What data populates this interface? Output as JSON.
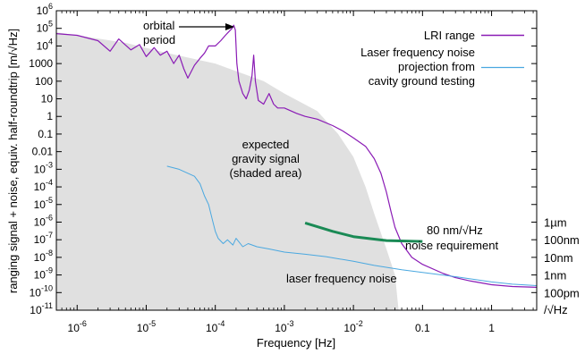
{
  "chart_data": {
    "type": "line",
    "xlabel": "Frequency [Hz]",
    "ylabel": "ranging signal + noise, equiv. half-roundtrip [m/√Hz]",
    "xscale": "log",
    "yscale": "log",
    "xlim": [
      5e-07,
      4.5
    ],
    "ylim": [
      1e-11,
      1000000.0
    ],
    "grid": false,
    "legend": {
      "position": "top-right"
    },
    "x_ticks": [
      {
        "value": 1e-06,
        "base": "10",
        "exp": "-6"
      },
      {
        "value": 1e-05,
        "base": "10",
        "exp": "-5"
      },
      {
        "value": 0.0001,
        "base": "10",
        "exp": "-4"
      },
      {
        "value": 0.001,
        "base": "10",
        "exp": "-3"
      },
      {
        "value": 0.01,
        "base": "10",
        "exp": "-2"
      },
      {
        "value": 0.1,
        "base": "0.1",
        "exp": ""
      },
      {
        "value": 1,
        "base": "1",
        "exp": ""
      }
    ],
    "y_ticks": [
      {
        "value": 1000000.0,
        "base": "10",
        "exp": "6"
      },
      {
        "value": 100000.0,
        "base": "10",
        "exp": "5"
      },
      {
        "value": 10000.0,
        "base": "10",
        "exp": "4"
      },
      {
        "value": 1000,
        "base": "1000",
        "exp": ""
      },
      {
        "value": 100,
        "base": "100",
        "exp": ""
      },
      {
        "value": 10,
        "base": "10",
        "exp": ""
      },
      {
        "value": 1,
        "base": "1",
        "exp": ""
      },
      {
        "value": 0.1,
        "base": "0.1",
        "exp": ""
      },
      {
        "value": 0.01,
        "base": "0.01",
        "exp": ""
      },
      {
        "value": 0.001,
        "base": "10",
        "exp": "-3"
      },
      {
        "value": 0.0001,
        "base": "10",
        "exp": "-4"
      },
      {
        "value": 1e-05,
        "base": "10",
        "exp": "-5"
      },
      {
        "value": 1e-06,
        "base": "10",
        "exp": "-6"
      },
      {
        "value": 1e-07,
        "base": "10",
        "exp": "-7"
      },
      {
        "value": 1e-08,
        "base": "10",
        "exp": "-8"
      },
      {
        "value": 1e-09,
        "base": "10",
        "exp": "-9"
      },
      {
        "value": 1e-10,
        "base": "10",
        "exp": "-10"
      },
      {
        "value": 1e-11,
        "base": "10",
        "exp": "-11"
      }
    ],
    "right_ticks": [
      {
        "value": 1e-06,
        "label": "1µm"
      },
      {
        "value": 1e-07,
        "label": "100nm"
      },
      {
        "value": 1e-08,
        "label": "10nm"
      },
      {
        "value": 1e-09,
        "label": "1nm"
      },
      {
        "value": 1e-10,
        "label": "100pm"
      }
    ],
    "right_unit": "/√Hz",
    "series": [
      {
        "name": "LRI range",
        "color": "#8a1bb5",
        "points": [
          [
            5e-07,
            50000.0
          ],
          [
            1e-06,
            40000.0
          ],
          [
            2e-06,
            20000.0
          ],
          [
            3e-06,
            5000
          ],
          [
            4e-06,
            25000.0
          ],
          [
            6e-06,
            6000
          ],
          [
            8e-06,
            12000.0
          ],
          [
            1e-05,
            2500
          ],
          [
            1.3e-05,
            8000
          ],
          [
            1.6e-05,
            3000
          ],
          [
            2e-05,
            5000
          ],
          [
            2.5e-05,
            1000
          ],
          [
            3e-05,
            3000
          ],
          [
            3.5e-05,
            500
          ],
          [
            4e-05,
            150
          ],
          [
            5e-05,
            800
          ],
          [
            6e-05,
            2000
          ],
          [
            7e-05,
            4000
          ],
          [
            8e-05,
            10000.0
          ],
          [
            0.0001,
            10000.0
          ],
          [
            0.00012,
            20000.0
          ],
          [
            0.00014,
            40000.0
          ],
          [
            0.00016,
            70000.0
          ],
          [
            0.000175,
            100000.0
          ],
          [
            0.000185,
            150000.0
          ],
          [
            0.000195,
            80000.0
          ],
          [
            0.000205,
            1000
          ],
          [
            0.00022,
            100
          ],
          [
            0.00025,
            20
          ],
          [
            0.00028,
            10
          ],
          [
            0.00031,
            30
          ],
          [
            0.00034,
            200
          ],
          [
            0.00036,
            3000
          ],
          [
            0.00038,
            100
          ],
          [
            0.00042,
            8
          ],
          [
            0.0005,
            5
          ],
          [
            0.0006,
            20
          ],
          [
            0.0007,
            5
          ],
          [
            0.0008,
            3
          ],
          [
            0.001,
            3
          ],
          [
            0.0015,
            1.5
          ],
          [
            0.002,
            1
          ],
          [
            0.003,
            0.7
          ],
          [
            0.005,
            0.3
          ],
          [
            0.007,
            0.15
          ],
          [
            0.01,
            0.06
          ],
          [
            0.015,
            0.02
          ],
          [
            0.02,
            0.004
          ],
          [
            0.025,
            0.0006
          ],
          [
            0.03,
            5e-05
          ],
          [
            0.035,
            4e-06
          ],
          [
            0.04,
            5e-07
          ],
          [
            0.05,
            6e-08
          ],
          [
            0.07,
            1e-08
          ],
          [
            0.1,
            4e-09
          ],
          [
            0.2,
            1.2e-09
          ],
          [
            0.3,
            7e-10
          ],
          [
            0.5,
            4.5e-10
          ],
          [
            1,
            2.8e-10
          ],
          [
            2,
            2.2e-10
          ],
          [
            4.5,
            2e-10
          ]
        ]
      },
      {
        "name": "Laser frequency noise projection from cavity ground testing",
        "color": "#4aa8e0",
        "points": [
          [
            2e-05,
            0.0015
          ],
          [
            3e-05,
            0.001
          ],
          [
            5e-05,
            0.0004
          ],
          [
            6e-05,
            0.00015
          ],
          [
            7e-05,
            3e-05
          ],
          [
            8e-05,
            1e-05
          ],
          [
            9e-05,
            1.5e-06
          ],
          [
            0.0001,
            3e-07
          ],
          [
            0.00011,
            1.2e-07
          ],
          [
            0.00013,
            6e-08
          ],
          [
            0.00015,
            1e-07
          ],
          [
            0.00018,
            5e-08
          ],
          [
            0.0002,
            1.2e-07
          ],
          [
            0.00025,
            4e-08
          ],
          [
            0.0003,
            6e-08
          ],
          [
            0.0004,
            4e-08
          ],
          [
            0.0006,
            3e-08
          ],
          [
            0.001,
            2e-08
          ],
          [
            0.002,
            1.5e-08
          ],
          [
            0.004,
            1.1e-08
          ],
          [
            0.01,
            6e-09
          ],
          [
            0.02,
            3.5e-09
          ],
          [
            0.05,
            2e-09
          ],
          [
            0.1,
            1.4e-09
          ],
          [
            0.3,
            8e-10
          ],
          [
            1,
            4e-10
          ],
          [
            2,
            3e-10
          ],
          [
            4.5,
            2.5e-10
          ]
        ]
      },
      {
        "name": "80 nm/√Hz noise requirement",
        "color": "#1a8a55",
        "points": [
          [
            0.002,
            9e-07
          ],
          [
            0.005,
            3e-07
          ],
          [
            0.01,
            1.5e-07
          ],
          [
            0.03,
            9e-08
          ],
          [
            0.1,
            8e-08
          ]
        ]
      }
    ],
    "shaded_area": {
      "color": "#e0e0e0",
      "points": [
        [
          5e-07,
          60000.0
        ],
        [
          1e-06,
          40000.0
        ],
        [
          5e-06,
          15000.0
        ],
        [
          2e-05,
          4000
        ],
        [
          0.0001,
          1000
        ],
        [
          0.0005,
          100
        ],
        [
          0.001,
          20
        ],
        [
          0.003,
          2
        ],
        [
          0.006,
          0.1
        ],
        [
          0.01,
          0.005
        ],
        [
          0.015,
          0.0001
        ],
        [
          0.02,
          3e-06
        ],
        [
          0.03,
          3e-08
        ],
        [
          0.04,
          1e-09
        ],
        [
          0.045,
          1e-11
        ]
      ]
    },
    "annotations": {
      "orbital_period": [
        "orbital",
        "period"
      ],
      "gravity_signal": [
        "expected",
        "gravity signal",
        "(shaded area)"
      ],
      "requirement": [
        "80 nm/√Hz",
        "noise requirement"
      ],
      "laser_noise": "laser frequency noise"
    },
    "legend_entries": {
      "lri": "LRI range",
      "laser": [
        "Laser frequency noise",
        "projection from",
        "cavity ground testing"
      ]
    }
  }
}
